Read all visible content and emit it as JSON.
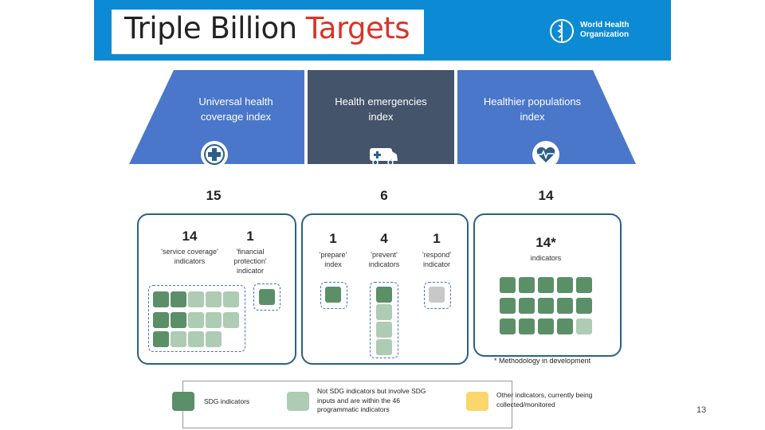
{
  "header": {
    "title_part1": "Triple Billion ",
    "title_part2": "Targets",
    "org_line1": "World Health",
    "org_line2": "Organization"
  },
  "columns": [
    {
      "label_line1": "Universal health",
      "label_line2": "coverage index",
      "icon": "medical-cross-icon",
      "total": "15",
      "groups": [
        {
          "count": "14",
          "caption_line1": "'service coverage'",
          "caption_line2": "indicators",
          "caption_line3": ""
        },
        {
          "count": "1",
          "caption_line1": "'financial",
          "caption_line2": "protection'",
          "caption_line3": "indicator"
        }
      ]
    },
    {
      "label_line1": "Health emergencies",
      "label_line2": "index",
      "icon": "ambulance-icon",
      "total": "6",
      "groups": [
        {
          "count": "1",
          "caption_line1": "'prepare'",
          "caption_line2": "index",
          "caption_line3": ""
        },
        {
          "count": "4",
          "caption_line1": "'prevent'",
          "caption_line2": "indicators",
          "caption_line3": ""
        },
        {
          "count": "1",
          "caption_line1": "'respond'",
          "caption_line2": "indicator",
          "caption_line3": ""
        }
      ]
    },
    {
      "label_line1": "Healthier populations",
      "label_line2": "index",
      "icon": "heartbeat-icon",
      "total": "14",
      "groups": [
        {
          "count": "14*",
          "caption_line1": "indicators",
          "caption_line2": "",
          "caption_line3": ""
        }
      ]
    }
  ],
  "note": "* Methodology in development",
  "legend": {
    "sdg": "SDG indicators",
    "not_sdg_line1": "Not SDG indicators but involve SDG",
    "not_sdg_line2": "inputs and are within the 46",
    "not_sdg_line3": "programmatic indicators",
    "other_line1": "Other indicators, currently being",
    "other_line2": "collected/monitored"
  },
  "colors": {
    "header": "#0d8ad4",
    "accent": "#d9342b",
    "trap_blue": "#4a77c9",
    "trap_dark": "#44546a",
    "sdg": "#5b8f67",
    "not_sdg": "#aecbb4",
    "other": "#fbd66a",
    "grey": "#c8c8c8"
  },
  "page_number": "13"
}
